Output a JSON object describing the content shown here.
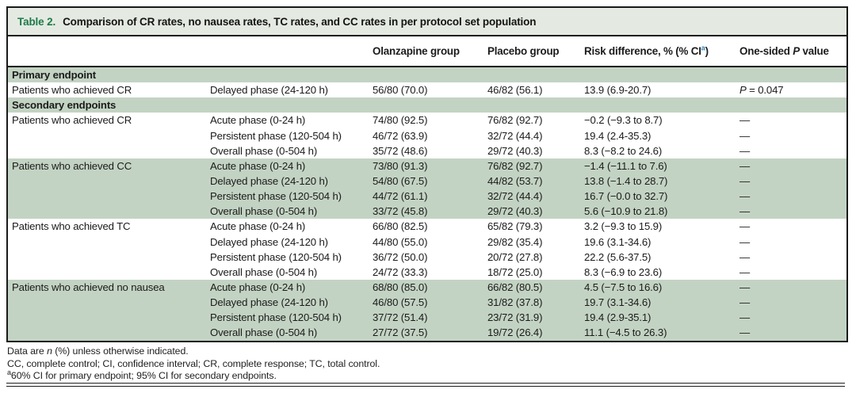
{
  "colors": {
    "accent_green": "#1e7a4b",
    "band_green": "#c3d3c3",
    "title_bar_green": "#e4eae1",
    "superscript_blue": "#2e86b5",
    "border_black": "#1a1a1a"
  },
  "table": {
    "title_label": "Table 2.",
    "title_text": "Comparison of CR rates, no nausea rates, TC rates, and CC rates in per protocol set population",
    "columns": {
      "olanzapine": "Olanzapine group",
      "placebo": "Placebo group",
      "risk_pre": "Risk difference, % (% CI",
      "risk_sup": "a",
      "risk_post": ")",
      "pvalue_pre": "One-sided ",
      "pvalue_italic": "P",
      "pvalue_post": " value"
    },
    "rows": [
      {
        "section": "Primary endpoint"
      },
      {
        "endpoint": "Patients who achieved CR",
        "phase": "Delayed phase (24-120 h)",
        "olanzapine": "56/80 (70.0)",
        "placebo": "46/82 (56.1)",
        "risk": "13.9 (6.9-20.7)",
        "p_italic": "P",
        "p_text": " = 0.047",
        "shade": false
      },
      {
        "section": "Secondary endpoints"
      },
      {
        "endpoint": "Patients who achieved CR",
        "phase": "Acute phase (0-24 h)",
        "olanzapine": "74/80 (92.5)",
        "placebo": "76/82 (92.7)",
        "risk": "−0.2 (−9.3 to 8.7)",
        "p": "—",
        "shade": false
      },
      {
        "endpoint": "",
        "phase": "Persistent phase (120-504 h)",
        "olanzapine": "46/72 (63.9)",
        "placebo": "32/72 (44.4)",
        "risk": "19.4 (2.4-35.3)",
        "p": "—",
        "shade": false
      },
      {
        "endpoint": "",
        "phase": "Overall phase (0-504 h)",
        "olanzapine": "35/72 (48.6)",
        "placebo": "29/72 (40.3)",
        "risk": "8.3 (−8.2 to 24.6)",
        "p": "—",
        "shade": false
      },
      {
        "endpoint": "Patients who achieved CC",
        "phase": "Acute phase (0-24 h)",
        "olanzapine": "73/80 (91.3)",
        "placebo": "76/82 (92.7)",
        "risk": "−1.4 (−11.1 to 7.6)",
        "p": "—",
        "shade": true
      },
      {
        "endpoint": "",
        "phase": "Delayed phase (24-120 h)",
        "olanzapine": "54/80 (67.5)",
        "placebo": "44/82 (53.7)",
        "risk": "13.8 (−1.4 to 28.7)",
        "p": "—",
        "shade": true
      },
      {
        "endpoint": "",
        "phase": "Persistent phase (120-504 h)",
        "olanzapine": "44/72 (61.1)",
        "placebo": "32/72 (44.4)",
        "risk": "16.7 (−0.0 to 32.7)",
        "p": "—",
        "shade": true
      },
      {
        "endpoint": "",
        "phase": "Overall phase (0-504 h)",
        "olanzapine": "33/72 (45.8)",
        "placebo": "29/72 (40.3)",
        "risk": "5.6 (−10.9 to 21.8)",
        "p": "—",
        "shade": true
      },
      {
        "endpoint": "Patients who achieved TC",
        "phase": "Acute phase (0-24 h)",
        "olanzapine": "66/80 (82.5)",
        "placebo": "65/82 (79.3)",
        "risk": "3.2 (−9.3 to 15.9)",
        "p": "—",
        "shade": false
      },
      {
        "endpoint": "",
        "phase": "Delayed phase (24-120 h)",
        "olanzapine": "44/80 (55.0)",
        "placebo": "29/82 (35.4)",
        "risk": "19.6 (3.1-34.6)",
        "p": "—",
        "shade": false
      },
      {
        "endpoint": "",
        "phase": "Persistent phase (120-504 h)",
        "olanzapine": "36/72 (50.0)",
        "placebo": "20/72 (27.8)",
        "risk": "22.2 (5.6-37.5)",
        "p": "—",
        "shade": false
      },
      {
        "endpoint": "",
        "phase": "Overall phase (0-504 h)",
        "olanzapine": "24/72 (33.3)",
        "placebo": "18/72 (25.0)",
        "risk": "8.3 (−6.9 to 23.6)",
        "p": "—",
        "shade": false
      },
      {
        "endpoint": "Patients who achieved no nausea",
        "phase": "Acute phase (0-24 h)",
        "olanzapine": "68/80 (85.0)",
        "placebo": "66/82 (80.5)",
        "risk": "4.5 (−7.5 to 16.6)",
        "p": "—",
        "shade": true
      },
      {
        "endpoint": "",
        "phase": "Delayed phase (24-120 h)",
        "olanzapine": "46/80 (57.5)",
        "placebo": "31/82 (37.8)",
        "risk": "19.7 (3.1-34.6)",
        "p": "—",
        "shade": true
      },
      {
        "endpoint": "",
        "phase": "Persistent phase (120-504 h)",
        "olanzapine": "37/72 (51.4)",
        "placebo": "23/72 (31.9)",
        "risk": "19.4 (2.9-35.1)",
        "p": "—",
        "shade": true
      },
      {
        "endpoint": "",
        "phase": "Overall phase (0-504 h)",
        "olanzapine": "27/72 (37.5)",
        "placebo": "19/72 (26.4)",
        "risk": "11.1 (−4.5 to 26.3)",
        "p": "—",
        "shade": true
      }
    ]
  },
  "footnotes": {
    "line1_pre": "Data are ",
    "line1_italic": "n",
    "line1_post": " (%) unless otherwise indicated.",
    "line2": "CC, complete control; CI, confidence interval; CR, complete response; TC, total control.",
    "line3_sup": "a",
    "line3_text": "60% CI for primary endpoint; 95% CI for secondary endpoints."
  }
}
